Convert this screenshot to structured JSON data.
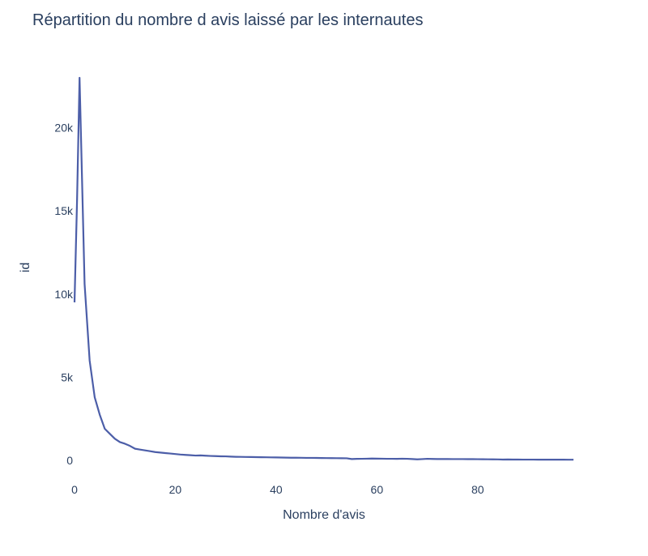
{
  "colors": {
    "line": "#4c5ea8",
    "text": "#2a3f5f",
    "background": "#ffffff"
  },
  "chart_data": {
    "type": "line",
    "title": "Répartition du nombre d avis laissé par les internautes",
    "xlabel": "Nombre d'avis",
    "ylabel": "id",
    "xlim": [
      0,
      99
    ],
    "ylim": [
      0,
      23000
    ],
    "grid": false,
    "x_ticks": [
      {
        "value": 0,
        "label": "0"
      },
      {
        "value": 20,
        "label": "20"
      },
      {
        "value": 40,
        "label": "40"
      },
      {
        "value": 60,
        "label": "60"
      },
      {
        "value": 80,
        "label": "80"
      }
    ],
    "y_ticks": [
      {
        "value": 0,
        "label": "0"
      },
      {
        "value": 5000,
        "label": "5k"
      },
      {
        "value": 10000,
        "label": "10k"
      },
      {
        "value": 15000,
        "label": "15k"
      },
      {
        "value": 20000,
        "label": "20k"
      }
    ],
    "series": [
      {
        "points": [
          [
            0,
            9500
          ],
          [
            0.5,
            15600
          ],
          [
            1,
            23000
          ],
          [
            2,
            10600
          ],
          [
            3,
            6000
          ],
          [
            4,
            3800
          ],
          [
            5,
            2750
          ],
          [
            6,
            1900
          ],
          [
            7,
            1600
          ],
          [
            8,
            1300
          ],
          [
            9,
            1100
          ],
          [
            10,
            1000
          ],
          [
            11,
            870
          ],
          [
            12,
            700
          ],
          [
            13,
            650
          ],
          [
            14,
            600
          ],
          [
            15,
            550
          ],
          [
            16,
            500
          ],
          [
            17,
            470
          ],
          [
            18,
            440
          ],
          [
            19,
            410
          ],
          [
            20,
            380
          ],
          [
            21,
            350
          ],
          [
            22,
            330
          ],
          [
            23,
            310
          ],
          [
            24,
            290
          ],
          [
            25,
            300
          ],
          [
            26,
            280
          ],
          [
            27,
            265
          ],
          [
            28,
            255
          ],
          [
            29,
            245
          ],
          [
            30,
            240
          ],
          [
            31,
            225
          ],
          [
            32,
            215
          ],
          [
            33,
            210
          ],
          [
            34,
            205
          ],
          [
            35,
            200
          ],
          [
            36,
            195
          ],
          [
            37,
            190
          ],
          [
            38,
            185
          ],
          [
            39,
            180
          ],
          [
            40,
            175
          ],
          [
            41,
            170
          ],
          [
            42,
            165
          ],
          [
            43,
            160
          ],
          [
            44,
            158
          ],
          [
            45,
            155
          ],
          [
            46,
            150
          ],
          [
            47,
            148
          ],
          [
            48,
            145
          ],
          [
            49,
            140
          ],
          [
            50,
            138
          ],
          [
            51,
            135
          ],
          [
            52,
            130
          ],
          [
            53,
            128
          ],
          [
            54,
            125
          ],
          [
            55,
            80
          ],
          [
            56,
            90
          ],
          [
            57,
            95
          ],
          [
            58,
            100
          ],
          [
            59,
            110
          ],
          [
            60,
            105
          ],
          [
            61,
            100
          ],
          [
            62,
            95
          ],
          [
            63,
            95
          ],
          [
            64,
            90
          ],
          [
            65,
            100
          ],
          [
            66,
            95
          ],
          [
            67,
            80
          ],
          [
            68,
            60
          ],
          [
            69,
            75
          ],
          [
            70,
            95
          ],
          [
            71,
            85
          ],
          [
            72,
            80
          ],
          [
            73,
            80
          ],
          [
            74,
            78
          ],
          [
            75,
            76
          ],
          [
            76,
            75
          ],
          [
            77,
            75
          ],
          [
            78,
            74
          ],
          [
            79,
            72
          ],
          [
            80,
            70
          ],
          [
            81,
            68
          ],
          [
            82,
            65
          ],
          [
            83,
            62
          ],
          [
            84,
            58
          ],
          [
            85,
            50
          ],
          [
            86,
            55
          ],
          [
            87,
            50
          ],
          [
            88,
            48
          ],
          [
            89,
            46
          ],
          [
            90,
            45
          ],
          [
            91,
            45
          ],
          [
            92,
            44
          ],
          [
            93,
            44
          ],
          [
            94,
            43
          ],
          [
            95,
            42
          ],
          [
            96,
            42
          ],
          [
            97,
            41
          ],
          [
            98,
            40
          ],
          [
            99,
            40
          ]
        ]
      }
    ]
  }
}
